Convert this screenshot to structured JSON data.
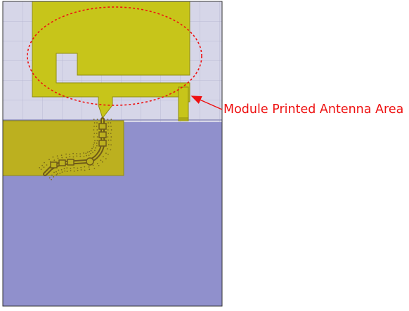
{
  "annotation": {
    "label": "Module Printed Antenna Area",
    "color": "#ee1111"
  },
  "colors": {
    "background": "#d6d6e8",
    "grid": "#b9b9d3",
    "antenna_copper": "#c7c51a",
    "antenna_outline": "#8f8c12",
    "feed_pad": "#bcb01f",
    "ground_plane": "#9090cc",
    "trace": "#6f5a18",
    "via": "#7a6a1a",
    "frame": "#333333"
  },
  "icons": {
    "arrow": "arrow-icon"
  }
}
